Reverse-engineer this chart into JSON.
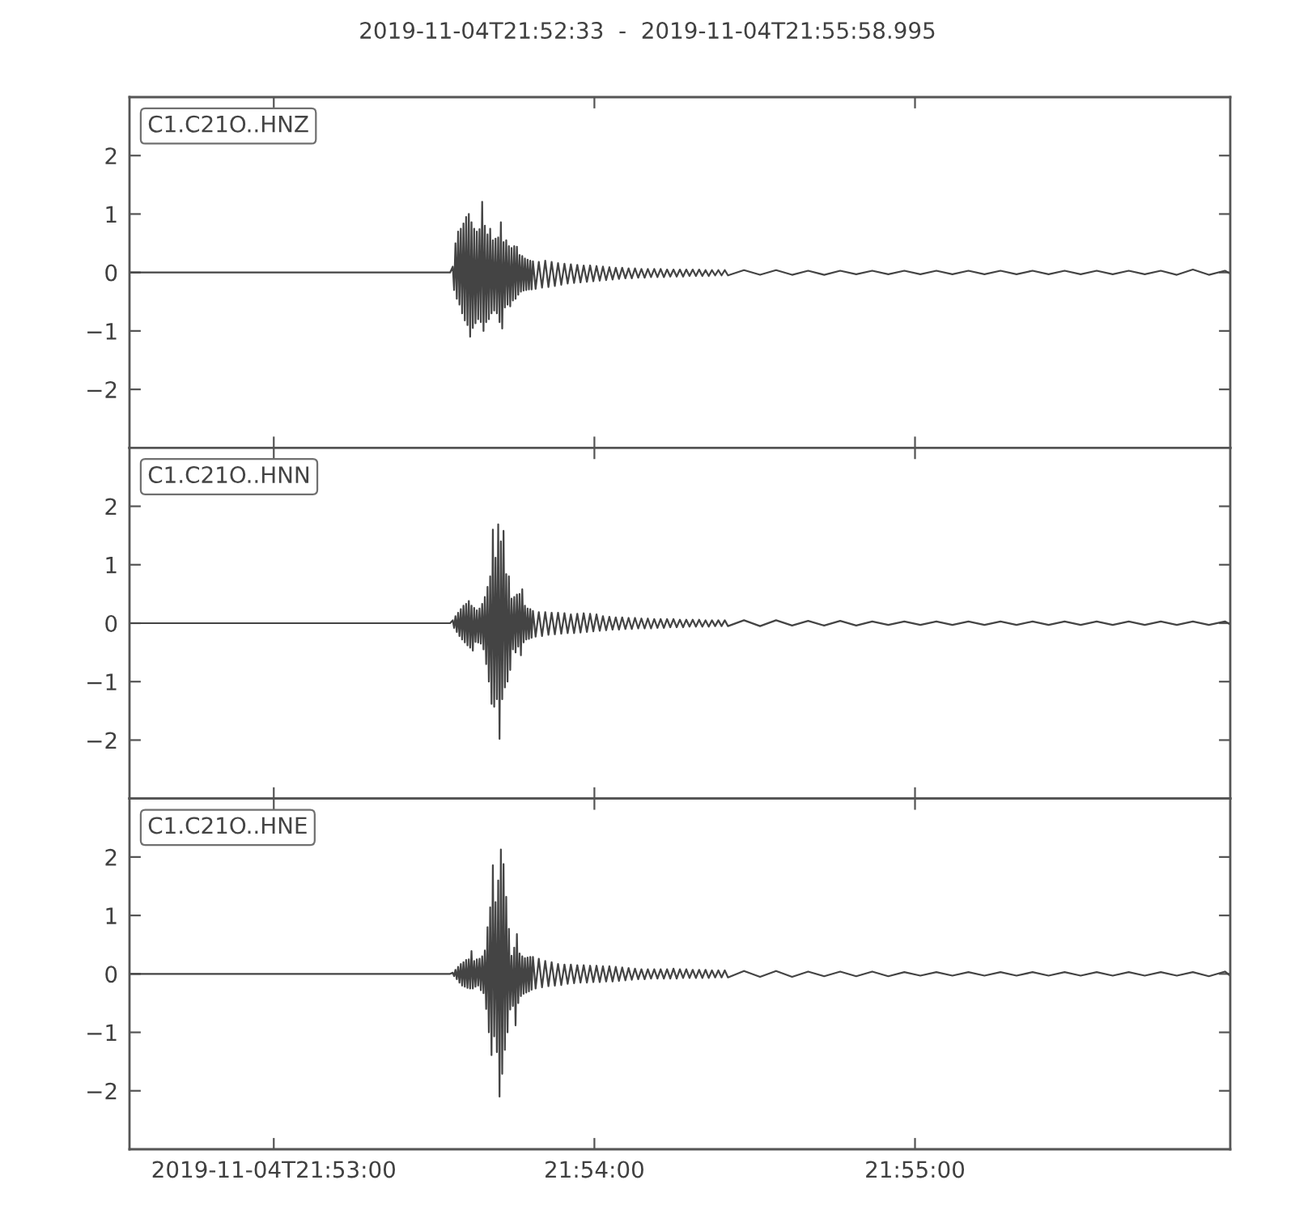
{
  "chart_data": [
    {
      "type": "line",
      "title": "2019-11-04T21:52:33  -  2019-11-04T21:55:58.995",
      "legend": "top left",
      "tick_labels": "y",
      "xlim": [
        "2019-11-04T21:52:33",
        "2019-11-04T21:55:58.995"
      ],
      "xticks": [
        {
          "value": "2019-11-04T21:53:00",
          "label": null
        },
        {
          "value": "2019-11-04T21:54:00",
          "label": null
        },
        {
          "value": "2019-11-04T21:55:00",
          "label": null
        }
      ],
      "ylim": [
        -3,
        3
      ],
      "yticks": [
        -2,
        -1,
        0,
        1,
        2
      ],
      "x": [
        "2019-11-04T21:52:33",
        "2019-11-04T21:53:33",
        "2019-11-04T21:53:33.5",
        "2019-11-04T21:53:33.75",
        "2019-11-04T21:53:34",
        "2019-11-04T21:53:34.25",
        "2019-11-04T21:53:34.5",
        "2019-11-04T21:53:34.75",
        "2019-11-04T21:53:35",
        "2019-11-04T21:53:35.25",
        "2019-11-04T21:53:35.5",
        "2019-11-04T21:53:35.75",
        "2019-11-04T21:53:36",
        "2019-11-04T21:53:36.25",
        "2019-11-04T21:53:36.5",
        "2019-11-04T21:53:36.75",
        "2019-11-04T21:53:37",
        "2019-11-04T21:53:37.25",
        "2019-11-04T21:53:37.5",
        "2019-11-04T21:53:37.75",
        "2019-11-04T21:53:38",
        "2019-11-04T21:53:38.25",
        "2019-11-04T21:53:38.5",
        "2019-11-04T21:53:38.75",
        "2019-11-04T21:53:39",
        "2019-11-04T21:53:39.25",
        "2019-11-04T21:53:39.5",
        "2019-11-04T21:53:39.75",
        "2019-11-04T21:53:40",
        "2019-11-04T21:53:40.25",
        "2019-11-04T21:53:40.5",
        "2019-11-04T21:53:40.75",
        "2019-11-04T21:53:41",
        "2019-11-04T21:53:41.25",
        "2019-11-04T21:53:41.5",
        "2019-11-04T21:53:41.75",
        "2019-11-04T21:53:42",
        "2019-11-04T21:53:42.25",
        "2019-11-04T21:53:42.5",
        "2019-11-04T21:53:42.75",
        "2019-11-04T21:53:43",
        "2019-11-04T21:53:43.25",
        "2019-11-04T21:53:43.5",
        "2019-11-04T21:53:43.75",
        "2019-11-04T21:53:44",
        "2019-11-04T21:53:44.25",
        "2019-11-04T21:53:44.5",
        "2019-11-04T21:53:44.75",
        "2019-11-04T21:53:45",
        "2019-11-04T21:53:45.25",
        "2019-11-04T21:53:45.5",
        "2019-11-04T21:53:45.75",
        "2019-11-04T21:53:46",
        "2019-11-04T21:53:46.25",
        "2019-11-04T21:53:46.5",
        "2019-11-04T21:53:46.75",
        "2019-11-04T21:53:47",
        "2019-11-04T21:53:47.25",
        "2019-11-04T21:53:47.5",
        "2019-11-04T21:53:47.75",
        "2019-11-04T21:53:48",
        "2019-11-04T21:53:48.25",
        "2019-11-04T21:53:48.5",
        "2019-11-04T21:53:49",
        "2019-11-04T21:53:49.6",
        "2019-11-04T21:53:50.2",
        "2019-11-04T21:53:50.8",
        "2019-11-04T21:53:51.4",
        "2019-11-04T21:53:52",
        "2019-11-04T21:53:52.6",
        "2019-11-04T21:53:53.2",
        "2019-11-04T21:53:53.8",
        "2019-11-04T21:53:54.4",
        "2019-11-04T21:53:55",
        "2019-11-04T21:53:55.6",
        "2019-11-04T21:53:56.2",
        "2019-11-04T21:53:56.8",
        "2019-11-04T21:53:57.4",
        "2019-11-04T21:53:58",
        "2019-11-04T21:53:58.6",
        "2019-11-04T21:53:59.2",
        "2019-11-04T21:53:59.8",
        "2019-11-04T21:54:00.4",
        "2019-11-04T21:54:01",
        "2019-11-04T21:54:01.6",
        "2019-11-04T21:54:02.2",
        "2019-11-04T21:54:02.8",
        "2019-11-04T21:54:03.4",
        "2019-11-04T21:54:04",
        "2019-11-04T21:54:04.6",
        "2019-11-04T21:54:05.2",
        "2019-11-04T21:54:05.8",
        "2019-11-04T21:54:06.4",
        "2019-11-04T21:54:07",
        "2019-11-04T21:54:07.6",
        "2019-11-04T21:54:08.2",
        "2019-11-04T21:54:08.8",
        "2019-11-04T21:54:09.4",
        "2019-11-04T21:54:10",
        "2019-11-04T21:54:10.6",
        "2019-11-04T21:54:11.2",
        "2019-11-04T21:54:11.8",
        "2019-11-04T21:54:12.4",
        "2019-11-04T21:54:13",
        "2019-11-04T21:54:13.6",
        "2019-11-04T21:54:14.2",
        "2019-11-04T21:54:14.8",
        "2019-11-04T21:54:15.4",
        "2019-11-04T21:54:16",
        "2019-11-04T21:54:16.6",
        "2019-11-04T21:54:17.2",
        "2019-11-04T21:54:17.8",
        "2019-11-04T21:54:18.4",
        "2019-11-04T21:54:19",
        "2019-11-04T21:54:19.6",
        "2019-11-04T21:54:20.2",
        "2019-11-04T21:54:20.8",
        "2019-11-04T21:54:21.4",
        "2019-11-04T21:54:22",
        "2019-11-04T21:54:22.6",
        "2019-11-04T21:54:23.2",
        "2019-11-04T21:54:23.8",
        "2019-11-04T21:54:24.4",
        "2019-11-04T21:54:25",
        "2019-11-04T21:54:28",
        "2019-11-04T21:54:31",
        "2019-11-04T21:54:34",
        "2019-11-04T21:54:37",
        "2019-11-04T21:54:40",
        "2019-11-04T21:54:43",
        "2019-11-04T21:54:46",
        "2019-11-04T21:54:49",
        "2019-11-04T21:54:52",
        "2019-11-04T21:54:55",
        "2019-11-04T21:54:58",
        "2019-11-04T21:55:01",
        "2019-11-04T21:55:04",
        "2019-11-04T21:55:07",
        "2019-11-04T21:55:10",
        "2019-11-04T21:55:13",
        "2019-11-04T21:55:16",
        "2019-11-04T21:55:19",
        "2019-11-04T21:55:22",
        "2019-11-04T21:55:25",
        "2019-11-04T21:55:28",
        "2019-11-04T21:55:31",
        "2019-11-04T21:55:34",
        "2019-11-04T21:55:37",
        "2019-11-04T21:55:40",
        "2019-11-04T21:55:43",
        "2019-11-04T21:55:46",
        "2019-11-04T21:55:49",
        "2019-11-04T21:55:52",
        "2019-11-04T21:55:55",
        "2019-11-04T21:55:58",
        "2019-11-04T21:55:58.995"
      ],
      "series": [
        {
          "name": "C1.C21O..HNZ",
          "color": "#444444",
          "values": [
            0,
            0,
            0.1,
            -0.3,
            0.5,
            -0.45,
            0.7,
            -0.55,
            0.75,
            -0.7,
            0.84,
            -0.82,
            0.95,
            -0.9,
            1.0,
            -1.1,
            0.86,
            -0.95,
            0.75,
            -0.87,
            0.7,
            -0.8,
            0.74,
            -0.85,
            1.21,
            -1.0,
            0.8,
            -0.85,
            0.65,
            -0.8,
            0.75,
            -0.7,
            0.55,
            -0.65,
            0.58,
            -0.7,
            0.6,
            -0.85,
            0.86,
            -0.96,
            0.52,
            -0.6,
            0.55,
            -0.55,
            0.45,
            -0.58,
            0.42,
            -0.48,
            0.45,
            -0.45,
            0.44,
            -0.38,
            0.3,
            -0.33,
            0.28,
            -0.31,
            0.24,
            -0.3,
            0.22,
            -0.29,
            0.2,
            -0.29,
            0.19,
            -0.28,
            0.18,
            -0.26,
            0.2,
            -0.25,
            0.18,
            -0.23,
            0.16,
            -0.21,
            0.15,
            -0.19,
            0.14,
            -0.18,
            0.13,
            -0.17,
            0.12,
            -0.16,
            0.12,
            -0.15,
            0.11,
            -0.14,
            0.1,
            -0.13,
            0.09,
            -0.12,
            0.08,
            -0.11,
            0.08,
            -0.1,
            0.07,
            -0.1,
            0.07,
            -0.09,
            0.06,
            -0.09,
            0.06,
            -0.08,
            0.06,
            -0.08,
            0.06,
            -0.08,
            0.05,
            -0.07,
            0.05,
            -0.07,
            0.05,
            -0.07,
            0.05,
            -0.06,
            0.05,
            -0.06,
            0.05,
            -0.06,
            0.04,
            -0.06,
            0.04,
            -0.05,
            0.04,
            -0.05,
            0.04,
            -0.05,
            0.04,
            -0.04,
            0.04,
            -0.04,
            0.03,
            -0.04,
            0.03,
            -0.03,
            0.03,
            -0.03,
            0.03,
            -0.03,
            0.03,
            -0.03,
            0.03,
            -0.03,
            0.03,
            -0.03,
            0.03,
            -0.03,
            0.03,
            -0.03,
            0.03,
            -0.03,
            0.03,
            -0.03,
            0.03,
            -0.04,
            0.05,
            -0.04,
            0.03,
            -0.02
          ]
        }
      ]
    },
    {
      "type": "line",
      "legend": "top left",
      "tick_labels": "y",
      "xlim": [
        "2019-11-04T21:52:33",
        "2019-11-04T21:55:58.995"
      ],
      "xticks": [
        {
          "value": "2019-11-04T21:53:00",
          "label": null
        },
        {
          "value": "2019-11-04T21:54:00",
          "label": null
        },
        {
          "value": "2019-11-04T21:55:00",
          "label": null
        }
      ],
      "ylim": [
        -3,
        3
      ],
      "yticks": [
        -2,
        -1,
        0,
        1,
        2
      ],
      "x": [
        "2019-11-04T21:52:33",
        "2019-11-04T21:53:33",
        "2019-11-04T21:53:33.5",
        "2019-11-04T21:53:33.75",
        "2019-11-04T21:53:34",
        "2019-11-04T21:53:34.25",
        "2019-11-04T21:53:34.5",
        "2019-11-04T21:53:34.75",
        "2019-11-04T21:53:35",
        "2019-11-04T21:53:35.25",
        "2019-11-04T21:53:35.5",
        "2019-11-04T21:53:35.75",
        "2019-11-04T21:53:36",
        "2019-11-04T21:53:36.25",
        "2019-11-04T21:53:36.5",
        "2019-11-04T21:53:36.75",
        "2019-11-04T21:53:37",
        "2019-11-04T21:53:37.25",
        "2019-11-04T21:53:37.5",
        "2019-11-04T21:53:37.75",
        "2019-11-04T21:53:38",
        "2019-11-04T21:53:38.25",
        "2019-11-04T21:53:38.5",
        "2019-11-04T21:53:38.75",
        "2019-11-04T21:53:39",
        "2019-11-04T21:53:39.25",
        "2019-11-04T21:53:39.5",
        "2019-11-04T21:53:39.75",
        "2019-11-04T21:53:40",
        "2019-11-04T21:53:40.25",
        "2019-11-04T21:53:40.5",
        "2019-11-04T21:53:40.75",
        "2019-11-04T21:53:41",
        "2019-11-04T21:53:41.25",
        "2019-11-04T21:53:41.5",
        "2019-11-04T21:53:41.75",
        "2019-11-04T21:53:42",
        "2019-11-04T21:53:42.25",
        "2019-11-04T21:53:42.5",
        "2019-11-04T21:53:42.75",
        "2019-11-04T21:53:43",
        "2019-11-04T21:53:43.25",
        "2019-11-04T21:53:43.5",
        "2019-11-04T21:53:43.75",
        "2019-11-04T21:53:44",
        "2019-11-04T21:53:44.25",
        "2019-11-04T21:53:44.5",
        "2019-11-04T21:53:44.75",
        "2019-11-04T21:53:45",
        "2019-11-04T21:53:45.25",
        "2019-11-04T21:53:45.5",
        "2019-11-04T21:53:45.75",
        "2019-11-04T21:53:46",
        "2019-11-04T21:53:46.25",
        "2019-11-04T21:53:46.5",
        "2019-11-04T21:53:46.75",
        "2019-11-04T21:53:47",
        "2019-11-04T21:53:47.25",
        "2019-11-04T21:53:47.5",
        "2019-11-04T21:53:47.75",
        "2019-11-04T21:53:48",
        "2019-11-04T21:53:48.25",
        "2019-11-04T21:53:48.5",
        "2019-11-04T21:53:49",
        "2019-11-04T21:53:49.6",
        "2019-11-04T21:53:50.2",
        "2019-11-04T21:53:50.8",
        "2019-11-04T21:53:51.4",
        "2019-11-04T21:53:52",
        "2019-11-04T21:53:52.6",
        "2019-11-04T21:53:53.2",
        "2019-11-04T21:53:53.8",
        "2019-11-04T21:53:54.4",
        "2019-11-04T21:53:55",
        "2019-11-04T21:53:55.6",
        "2019-11-04T21:53:56.2",
        "2019-11-04T21:53:56.8",
        "2019-11-04T21:53:57.4",
        "2019-11-04T21:53:58",
        "2019-11-04T21:53:58.6",
        "2019-11-04T21:53:59.2",
        "2019-11-04T21:53:59.8",
        "2019-11-04T21:54:00.4",
        "2019-11-04T21:54:01",
        "2019-11-04T21:54:01.6",
        "2019-11-04T21:54:02.2",
        "2019-11-04T21:54:02.8",
        "2019-11-04T21:54:03.4",
        "2019-11-04T21:54:04",
        "2019-11-04T21:54:04.6",
        "2019-11-04T21:54:05.2",
        "2019-11-04T21:54:05.8",
        "2019-11-04T21:54:06.4",
        "2019-11-04T21:54:07",
        "2019-11-04T21:54:07.6",
        "2019-11-04T21:54:08.2",
        "2019-11-04T21:54:08.8",
        "2019-11-04T21:54:09.4",
        "2019-11-04T21:54:10",
        "2019-11-04T21:54:10.6",
        "2019-11-04T21:54:11.2",
        "2019-11-04T21:54:11.8",
        "2019-11-04T21:54:12.4",
        "2019-11-04T21:54:13",
        "2019-11-04T21:54:13.6",
        "2019-11-04T21:54:14.2",
        "2019-11-04T21:54:14.8",
        "2019-11-04T21:54:15.4",
        "2019-11-04T21:54:16",
        "2019-11-04T21:54:16.6",
        "2019-11-04T21:54:17.2",
        "2019-11-04T21:54:17.8",
        "2019-11-04T21:54:18.4",
        "2019-11-04T21:54:19",
        "2019-11-04T21:54:19.6",
        "2019-11-04T21:54:20.2",
        "2019-11-04T21:54:20.8",
        "2019-11-04T21:54:21.4",
        "2019-11-04T21:54:22",
        "2019-11-04T21:54:22.6",
        "2019-11-04T21:54:23.2",
        "2019-11-04T21:54:23.8",
        "2019-11-04T21:54:24.4",
        "2019-11-04T21:54:25",
        "2019-11-04T21:54:28",
        "2019-11-04T21:54:31",
        "2019-11-04T21:54:34",
        "2019-11-04T21:54:37",
        "2019-11-04T21:54:40",
        "2019-11-04T21:54:43",
        "2019-11-04T21:54:46",
        "2019-11-04T21:54:49",
        "2019-11-04T21:54:52",
        "2019-11-04T21:54:55",
        "2019-11-04T21:54:58",
        "2019-11-04T21:55:01",
        "2019-11-04T21:55:04",
        "2019-11-04T21:55:07",
        "2019-11-04T21:55:10",
        "2019-11-04T21:55:13",
        "2019-11-04T21:55:16",
        "2019-11-04T21:55:19",
        "2019-11-04T21:55:22",
        "2019-11-04T21:55:25",
        "2019-11-04T21:55:28",
        "2019-11-04T21:55:31",
        "2019-11-04T21:55:34",
        "2019-11-04T21:55:37",
        "2019-11-04T21:55:40",
        "2019-11-04T21:55:43",
        "2019-11-04T21:55:46",
        "2019-11-04T21:55:49",
        "2019-11-04T21:55:52",
        "2019-11-04T21:55:55",
        "2019-11-04T21:55:58",
        "2019-11-04T21:55:58.995"
      ],
      "series": [
        {
          "name": "C1.C21O..HNN",
          "color": "#444444",
          "values": [
            0,
            0,
            0.05,
            -0.08,
            0.12,
            -0.15,
            0.18,
            -0.22,
            0.24,
            -0.28,
            0.3,
            -0.33,
            0.33,
            -0.38,
            0.38,
            -0.42,
            0.3,
            -0.47,
            0.26,
            -0.32,
            0.22,
            -0.33,
            0.25,
            -0.35,
            0.33,
            -0.45,
            0.45,
            -0.7,
            0.62,
            -1.0,
            0.8,
            -1.38,
            1.6,
            -1.43,
            1.12,
            -1.3,
            1.69,
            -1.98,
            1.4,
            -1.3,
            1.58,
            -1.1,
            0.84,
            -1.0,
            0.8,
            -0.8,
            0.42,
            -0.45,
            0.45,
            -0.5,
            0.49,
            -0.4,
            0.5,
            -0.55,
            0.58,
            -0.33,
            0.3,
            -0.28,
            0.25,
            -0.27,
            0.24,
            -0.25,
            0.21,
            -0.23,
            0.19,
            -0.22,
            0.19,
            -0.2,
            0.18,
            -0.19,
            0.18,
            -0.18,
            0.17,
            -0.17,
            0.15,
            -0.17,
            0.16,
            -0.16,
            0.17,
            -0.15,
            0.16,
            -0.14,
            0.15,
            -0.13,
            0.12,
            -0.12,
            0.11,
            -0.11,
            0.1,
            -0.11,
            0.1,
            -0.1,
            0.09,
            -0.1,
            0.09,
            -0.09,
            0.08,
            -0.09,
            0.08,
            -0.09,
            0.07,
            -0.08,
            0.07,
            -0.08,
            0.07,
            -0.07,
            0.07,
            -0.07,
            0.06,
            -0.07,
            0.06,
            -0.06,
            0.06,
            -0.06,
            0.06,
            -0.06,
            0.05,
            -0.06,
            0.05,
            -0.05,
            0.05,
            -0.05,
            0.05,
            -0.05,
            0.05,
            -0.05,
            0.05,
            -0.04,
            0.04,
            -0.04,
            0.04,
            -0.04,
            0.03,
            -0.03,
            0.03,
            -0.03,
            0.03,
            -0.03,
            0.03,
            -0.03,
            0.03,
            -0.03,
            0.03,
            -0.03,
            0.03,
            -0.03,
            0.03,
            -0.03,
            0.03,
            -0.03,
            0.03,
            -0.03,
            0.03,
            -0.03,
            0.03,
            -0.02
          ]
        }
      ]
    },
    {
      "type": "line",
      "legend": "top left",
      "xlim": [
        "2019-11-04T21:52:33",
        "2019-11-04T21:55:58.995"
      ],
      "xticks": [
        {
          "value": "2019-11-04T21:53:00",
          "label": "2019-11-04T21:53:00"
        },
        {
          "value": "2019-11-04T21:54:00",
          "label": "21:54:00"
        },
        {
          "value": "2019-11-04T21:55:00",
          "label": "21:55:00"
        }
      ],
      "ylim": [
        -3,
        3
      ],
      "yticks": [
        -2,
        -1,
        0,
        1,
        2
      ],
      "x": [
        "2019-11-04T21:52:33",
        "2019-11-04T21:53:33",
        "2019-11-04T21:53:33.5",
        "2019-11-04T21:53:33.75",
        "2019-11-04T21:53:34",
        "2019-11-04T21:53:34.25",
        "2019-11-04T21:53:34.5",
        "2019-11-04T21:53:34.75",
        "2019-11-04T21:53:35",
        "2019-11-04T21:53:35.25",
        "2019-11-04T21:53:35.5",
        "2019-11-04T21:53:35.75",
        "2019-11-04T21:53:36",
        "2019-11-04T21:53:36.25",
        "2019-11-04T21:53:36.5",
        "2019-11-04T21:53:36.75",
        "2019-11-04T21:53:37",
        "2019-11-04T21:53:37.25",
        "2019-11-04T21:53:37.5",
        "2019-11-04T21:53:37.75",
        "2019-11-04T21:53:38",
        "2019-11-04T21:53:38.25",
        "2019-11-04T21:53:38.5",
        "2019-11-04T21:53:38.75",
        "2019-11-04T21:53:39",
        "2019-11-04T21:53:39.25",
        "2019-11-04T21:53:39.5",
        "2019-11-04T21:53:39.75",
        "2019-11-04T21:53:40",
        "2019-11-04T21:53:40.25",
        "2019-11-04T21:53:40.5",
        "2019-11-04T21:53:40.75",
        "2019-11-04T21:53:41",
        "2019-11-04T21:53:41.25",
        "2019-11-04T21:53:41.5",
        "2019-11-04T21:53:41.75",
        "2019-11-04T21:53:42",
        "2019-11-04T21:53:42.25",
        "2019-11-04T21:53:42.5",
        "2019-11-04T21:53:42.75",
        "2019-11-04T21:53:43",
        "2019-11-04T21:53:43.25",
        "2019-11-04T21:53:43.5",
        "2019-11-04T21:53:43.75",
        "2019-11-04T21:53:44",
        "2019-11-04T21:53:44.25",
        "2019-11-04T21:53:44.5",
        "2019-11-04T21:53:44.75",
        "2019-11-04T21:53:45",
        "2019-11-04T21:53:45.25",
        "2019-11-04T21:53:45.5",
        "2019-11-04T21:53:45.75",
        "2019-11-04T21:53:46",
        "2019-11-04T21:53:46.25",
        "2019-11-04T21:53:46.5",
        "2019-11-04T21:53:46.75",
        "2019-11-04T21:53:47",
        "2019-11-04T21:53:47.25",
        "2019-11-04T21:53:47.5",
        "2019-11-04T21:53:47.75",
        "2019-11-04T21:53:48",
        "2019-11-04T21:53:48.25",
        "2019-11-04T21:53:48.5",
        "2019-11-04T21:53:49",
        "2019-11-04T21:53:49.6",
        "2019-11-04T21:53:50.2",
        "2019-11-04T21:53:50.8",
        "2019-11-04T21:53:51.4",
        "2019-11-04T21:53:52",
        "2019-11-04T21:53:52.6",
        "2019-11-04T21:53:53.2",
        "2019-11-04T21:53:53.8",
        "2019-11-04T21:53:54.4",
        "2019-11-04T21:53:55",
        "2019-11-04T21:53:55.6",
        "2019-11-04T21:53:56.2",
        "2019-11-04T21:53:56.8",
        "2019-11-04T21:53:57.4",
        "2019-11-04T21:53:58",
        "2019-11-04T21:53:58.6",
        "2019-11-04T21:53:59.2",
        "2019-11-04T21:53:59.8",
        "2019-11-04T21:54:00.4",
        "2019-11-04T21:54:01",
        "2019-11-04T21:54:01.6",
        "2019-11-04T21:54:02.2",
        "2019-11-04T21:54:02.8",
        "2019-11-04T21:54:03.4",
        "2019-11-04T21:54:04",
        "2019-11-04T21:54:04.6",
        "2019-11-04T21:54:05.2",
        "2019-11-04T21:54:05.8",
        "2019-11-04T21:54:06.4",
        "2019-11-04T21:54:07",
        "2019-11-04T21:54:07.6",
        "2019-11-04T21:54:08.2",
        "2019-11-04T21:54:08.8",
        "2019-11-04T21:54:09.4",
        "2019-11-04T21:54:10",
        "2019-11-04T21:54:10.6",
        "2019-11-04T21:54:11.2",
        "2019-11-04T21:54:11.8",
        "2019-11-04T21:54:12.4",
        "2019-11-04T21:54:13",
        "2019-11-04T21:54:13.6",
        "2019-11-04T21:54:14.2",
        "2019-11-04T21:54:14.8",
        "2019-11-04T21:54:15.4",
        "2019-11-04T21:54:16",
        "2019-11-04T21:54:16.6",
        "2019-11-04T21:54:17.2",
        "2019-11-04T21:54:17.8",
        "2019-11-04T21:54:18.4",
        "2019-11-04T21:54:19",
        "2019-11-04T21:54:19.6",
        "2019-11-04T21:54:20.2",
        "2019-11-04T21:54:20.8",
        "2019-11-04T21:54:21.4",
        "2019-11-04T21:54:22",
        "2019-11-04T21:54:22.6",
        "2019-11-04T21:54:23.2",
        "2019-11-04T21:54:23.8",
        "2019-11-04T21:54:24.4",
        "2019-11-04T21:54:25",
        "2019-11-04T21:54:28",
        "2019-11-04T21:54:31",
        "2019-11-04T21:54:34",
        "2019-11-04T21:54:37",
        "2019-11-04T21:54:40",
        "2019-11-04T21:54:43",
        "2019-11-04T21:54:46",
        "2019-11-04T21:54:49",
        "2019-11-04T21:54:52",
        "2019-11-04T21:54:55",
        "2019-11-04T21:54:58",
        "2019-11-04T21:55:01",
        "2019-11-04T21:55:04",
        "2019-11-04T21:55:07",
        "2019-11-04T21:55:10",
        "2019-11-04T21:55:13",
        "2019-11-04T21:55:16",
        "2019-11-04T21:55:19",
        "2019-11-04T21:55:22",
        "2019-11-04T21:55:25",
        "2019-11-04T21:55:28",
        "2019-11-04T21:55:31",
        "2019-11-04T21:55:34",
        "2019-11-04T21:55:37",
        "2019-11-04T21:55:40",
        "2019-11-04T21:55:43",
        "2019-11-04T21:55:46",
        "2019-11-04T21:55:49",
        "2019-11-04T21:55:52",
        "2019-11-04T21:55:55",
        "2019-11-04T21:55:58",
        "2019-11-04T21:55:58.995"
      ],
      "series": [
        {
          "name": "C1.C21O..HNE",
          "color": "#444444",
          "values": [
            0,
            0,
            0.02,
            -0.04,
            0.07,
            -0.09,
            0.12,
            -0.15,
            0.17,
            -0.2,
            0.2,
            -0.22,
            0.24,
            -0.24,
            0.25,
            -0.25,
            0.39,
            -0.25,
            0.22,
            -0.22,
            0.25,
            -0.2,
            0.26,
            -0.28,
            0.3,
            -0.33,
            0.4,
            -0.6,
            0.8,
            -1.0,
            1.14,
            -1.39,
            1.86,
            -1.07,
            1.23,
            -1.34,
            1.6,
            -2.1,
            2.13,
            -1.71,
            1.88,
            -1.3,
            1.32,
            -1.0,
            0.77,
            -0.61,
            0.31,
            -0.55,
            0.45,
            -0.88,
            0.68,
            -0.5,
            0.35,
            -0.38,
            0.3,
            -0.34,
            0.27,
            -0.32,
            0.28,
            -0.3,
            0.29,
            -0.27,
            0.29,
            -0.25,
            0.26,
            -0.23,
            0.22,
            -0.21,
            0.2,
            -0.2,
            0.17,
            -0.19,
            0.16,
            -0.17,
            0.16,
            -0.16,
            0.15,
            -0.15,
            0.15,
            -0.15,
            0.14,
            -0.14,
            0.14,
            -0.14,
            0.13,
            -0.13,
            0.13,
            -0.13,
            0.12,
            -0.12,
            0.11,
            -0.11,
            0.1,
            -0.1,
            0.09,
            -0.09,
            0.08,
            -0.09,
            0.08,
            -0.08,
            0.08,
            -0.08,
            0.08,
            -0.08,
            0.08,
            -0.08,
            0.09,
            -0.08,
            0.08,
            -0.07,
            0.08,
            -0.07,
            0.07,
            -0.07,
            0.07,
            -0.07,
            0.07,
            -0.07,
            0.06,
            -0.06,
            0.06,
            -0.06,
            0.06,
            -0.06,
            0.05,
            -0.05,
            0.05,
            -0.05,
            0.04,
            -0.04,
            0.04,
            -0.04,
            0.04,
            -0.04,
            0.03,
            -0.03,
            0.03,
            -0.03,
            0.03,
            -0.03,
            0.03,
            -0.03,
            0.03,
            -0.03,
            0.03,
            -0.03,
            0.03,
            -0.03,
            0.03,
            -0.03,
            0.03,
            -0.03,
            0.03,
            -0.04,
            0.04,
            -0.03
          ]
        }
      ]
    }
  ]
}
